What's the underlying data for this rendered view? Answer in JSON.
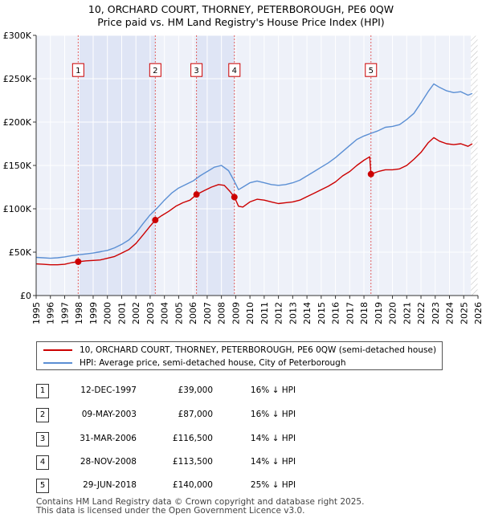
{
  "chart_data": {
    "type": "line",
    "title": "10, ORCHARD COURT, THORNEY, PETERBOROUGH, PE6 0QW",
    "subtitle": "Price paid vs. HM Land Registry's House Price Index (HPI)",
    "xlim": [
      1995,
      2026
    ],
    "ylim": [
      0,
      300000
    ],
    "x_ticks": [
      "1995",
      "1996",
      "1997",
      "1998",
      "1999",
      "2000",
      "2001",
      "2002",
      "2003",
      "2004",
      "2005",
      "2006",
      "2007",
      "2008",
      "2009",
      "2010",
      "2011",
      "2012",
      "2013",
      "2014",
      "2015",
      "2016",
      "2017",
      "2018",
      "2019",
      "2020",
      "2021",
      "2022",
      "2023",
      "2024",
      "2025",
      "2026"
    ],
    "y_ticks": [
      {
        "value": 0,
        "label": "£0"
      },
      {
        "value": 50000,
        "label": "£50K"
      },
      {
        "value": 100000,
        "label": "£100K"
      },
      {
        "value": 150000,
        "label": "£150K"
      },
      {
        "value": 200000,
        "label": "£200K"
      },
      {
        "value": 250000,
        "label": "£250K"
      },
      {
        "value": 300000,
        "label": "£300K"
      }
    ],
    "grid": true,
    "future_hatch_from": 2025.5,
    "shaded_spans": [
      [
        1997.95,
        2003.36
      ],
      [
        2006.25,
        2008.91
      ]
    ],
    "series": [
      {
        "name": "10, ORCHARD COURT, THORNEY, PETERBOROUGH, PE6 0QW (semi-detached house)",
        "color": "#cc0000",
        "points": [
          [
            1995.0,
            36500
          ],
          [
            1995.5,
            36000
          ],
          [
            1996.0,
            35500
          ],
          [
            1996.5,
            35500
          ],
          [
            1997.0,
            36000
          ],
          [
            1997.5,
            38000
          ],
          [
            1997.95,
            39000
          ],
          [
            1998.5,
            40000
          ],
          [
            1999.0,
            40500
          ],
          [
            1999.5,
            41000
          ],
          [
            2000.0,
            43000
          ],
          [
            2000.5,
            45000
          ],
          [
            2001.0,
            49000
          ],
          [
            2001.5,
            53000
          ],
          [
            2002.0,
            60000
          ],
          [
            2002.5,
            70000
          ],
          [
            2003.0,
            80000
          ],
          [
            2003.36,
            87000
          ],
          [
            2003.8,
            92000
          ],
          [
            2004.3,
            97000
          ],
          [
            2004.8,
            103000
          ],
          [
            2005.3,
            107000
          ],
          [
            2005.8,
            110000
          ],
          [
            2006.25,
            116500
          ],
          [
            2006.8,
            121000
          ],
          [
            2007.3,
            125000
          ],
          [
            2007.8,
            128000
          ],
          [
            2008.2,
            127000
          ],
          [
            2008.6,
            120000
          ],
          [
            2008.91,
            113500
          ],
          [
            2009.2,
            103000
          ],
          [
            2009.5,
            102000
          ],
          [
            2010.0,
            108000
          ],
          [
            2010.5,
            111000
          ],
          [
            2011.0,
            110000
          ],
          [
            2011.5,
            108000
          ],
          [
            2012.0,
            106000
          ],
          [
            2012.5,
            107000
          ],
          [
            2013.0,
            108000
          ],
          [
            2013.5,
            110000
          ],
          [
            2014.0,
            114000
          ],
          [
            2014.5,
            118000
          ],
          [
            2015.0,
            122000
          ],
          [
            2015.5,
            126000
          ],
          [
            2016.0,
            131000
          ],
          [
            2016.5,
            138000
          ],
          [
            2017.0,
            143000
          ],
          [
            2017.5,
            150000
          ],
          [
            2018.0,
            156000
          ],
          [
            2018.4,
            160000
          ],
          [
            2018.49,
            140000
          ],
          [
            2019.0,
            143000
          ],
          [
            2019.5,
            145000
          ],
          [
            2020.0,
            145000
          ],
          [
            2020.5,
            146000
          ],
          [
            2021.0,
            150000
          ],
          [
            2021.5,
            157000
          ],
          [
            2022.0,
            165000
          ],
          [
            2022.5,
            176000
          ],
          [
            2022.9,
            182000
          ],
          [
            2023.3,
            178000
          ],
          [
            2023.8,
            175000
          ],
          [
            2024.3,
            174000
          ],
          [
            2024.8,
            175000
          ],
          [
            2025.3,
            172000
          ],
          [
            2025.6,
            175000
          ]
        ]
      },
      {
        "name": "HPI: Average price, semi-detached house, City of Peterborough",
        "color": "#5b8fd4",
        "points": [
          [
            1995.0,
            44000
          ],
          [
            1995.5,
            43500
          ],
          [
            1996.0,
            43000
          ],
          [
            1996.5,
            43500
          ],
          [
            1997.0,
            44500
          ],
          [
            1997.5,
            46000
          ],
          [
            1998.0,
            47000
          ],
          [
            1998.5,
            48000
          ],
          [
            1999.0,
            49000
          ],
          [
            1999.5,
            50500
          ],
          [
            2000.0,
            52000
          ],
          [
            2000.5,
            55000
          ],
          [
            2001.0,
            59000
          ],
          [
            2001.5,
            64000
          ],
          [
            2002.0,
            72000
          ],
          [
            2002.5,
            83000
          ],
          [
            2003.0,
            93000
          ],
          [
            2003.5,
            101000
          ],
          [
            2004.0,
            110000
          ],
          [
            2004.5,
            118000
          ],
          [
            2005.0,
            124000
          ],
          [
            2005.5,
            128000
          ],
          [
            2006.0,
            132000
          ],
          [
            2006.5,
            138000
          ],
          [
            2007.0,
            143000
          ],
          [
            2007.5,
            148000
          ],
          [
            2008.0,
            150000
          ],
          [
            2008.5,
            144000
          ],
          [
            2008.9,
            132000
          ],
          [
            2009.2,
            122000
          ],
          [
            2009.5,
            125000
          ],
          [
            2010.0,
            130000
          ],
          [
            2010.5,
            132000
          ],
          [
            2011.0,
            130000
          ],
          [
            2011.5,
            128000
          ],
          [
            2012.0,
            127000
          ],
          [
            2012.5,
            128000
          ],
          [
            2013.0,
            130000
          ],
          [
            2013.5,
            133000
          ],
          [
            2014.0,
            138000
          ],
          [
            2014.5,
            143000
          ],
          [
            2015.0,
            148000
          ],
          [
            2015.5,
            153000
          ],
          [
            2016.0,
            159000
          ],
          [
            2016.5,
            166000
          ],
          [
            2017.0,
            173000
          ],
          [
            2017.5,
            180000
          ],
          [
            2018.0,
            184000
          ],
          [
            2018.5,
            187000
          ],
          [
            2019.0,
            190000
          ],
          [
            2019.5,
            194000
          ],
          [
            2020.0,
            195000
          ],
          [
            2020.5,
            197000
          ],
          [
            2021.0,
            203000
          ],
          [
            2021.5,
            210000
          ],
          [
            2022.0,
            222000
          ],
          [
            2022.5,
            235000
          ],
          [
            2022.9,
            244000
          ],
          [
            2023.3,
            240000
          ],
          [
            2023.8,
            236000
          ],
          [
            2024.3,
            234000
          ],
          [
            2024.8,
            235000
          ],
          [
            2025.3,
            231000
          ],
          [
            2025.6,
            233000
          ]
        ]
      }
    ],
    "markers": [
      {
        "label": "1",
        "x": 1997.95,
        "y": 39000
      },
      {
        "label": "2",
        "x": 2003.36,
        "y": 87000
      },
      {
        "label": "3",
        "x": 2006.25,
        "y": 116500
      },
      {
        "label": "4",
        "x": 2008.91,
        "y": 113500
      },
      {
        "label": "5",
        "x": 2018.49,
        "y": 140000
      }
    ],
    "marker_box_value": 260000
  },
  "legend": {
    "property": "10, ORCHARD COURT, THORNEY, PETERBOROUGH, PE6 0QW (semi-detached house)",
    "hpi": "HPI: Average price, semi-detached house, City of Peterborough",
    "property_color": "#cc0000",
    "hpi_color": "#5b8fd4"
  },
  "sales": [
    {
      "num": "1",
      "date": "12-DEC-1997",
      "price": "£39,000",
      "hpi": "16% ↓ HPI"
    },
    {
      "num": "2",
      "date": "09-MAY-2003",
      "price": "£87,000",
      "hpi": "16% ↓ HPI"
    },
    {
      "num": "3",
      "date": "31-MAR-2006",
      "price": "£116,500",
      "hpi": "14% ↓ HPI"
    },
    {
      "num": "4",
      "date": "28-NOV-2008",
      "price": "£113,500",
      "hpi": "14% ↓ HPI"
    },
    {
      "num": "5",
      "date": "29-JUN-2018",
      "price": "£140,000",
      "hpi": "25% ↓ HPI"
    }
  ],
  "footer": {
    "line1": "Contains HM Land Registry data © Crown copyright and database right 2025.",
    "line2": "This data is licensed under the Open Government Licence v3.0."
  }
}
